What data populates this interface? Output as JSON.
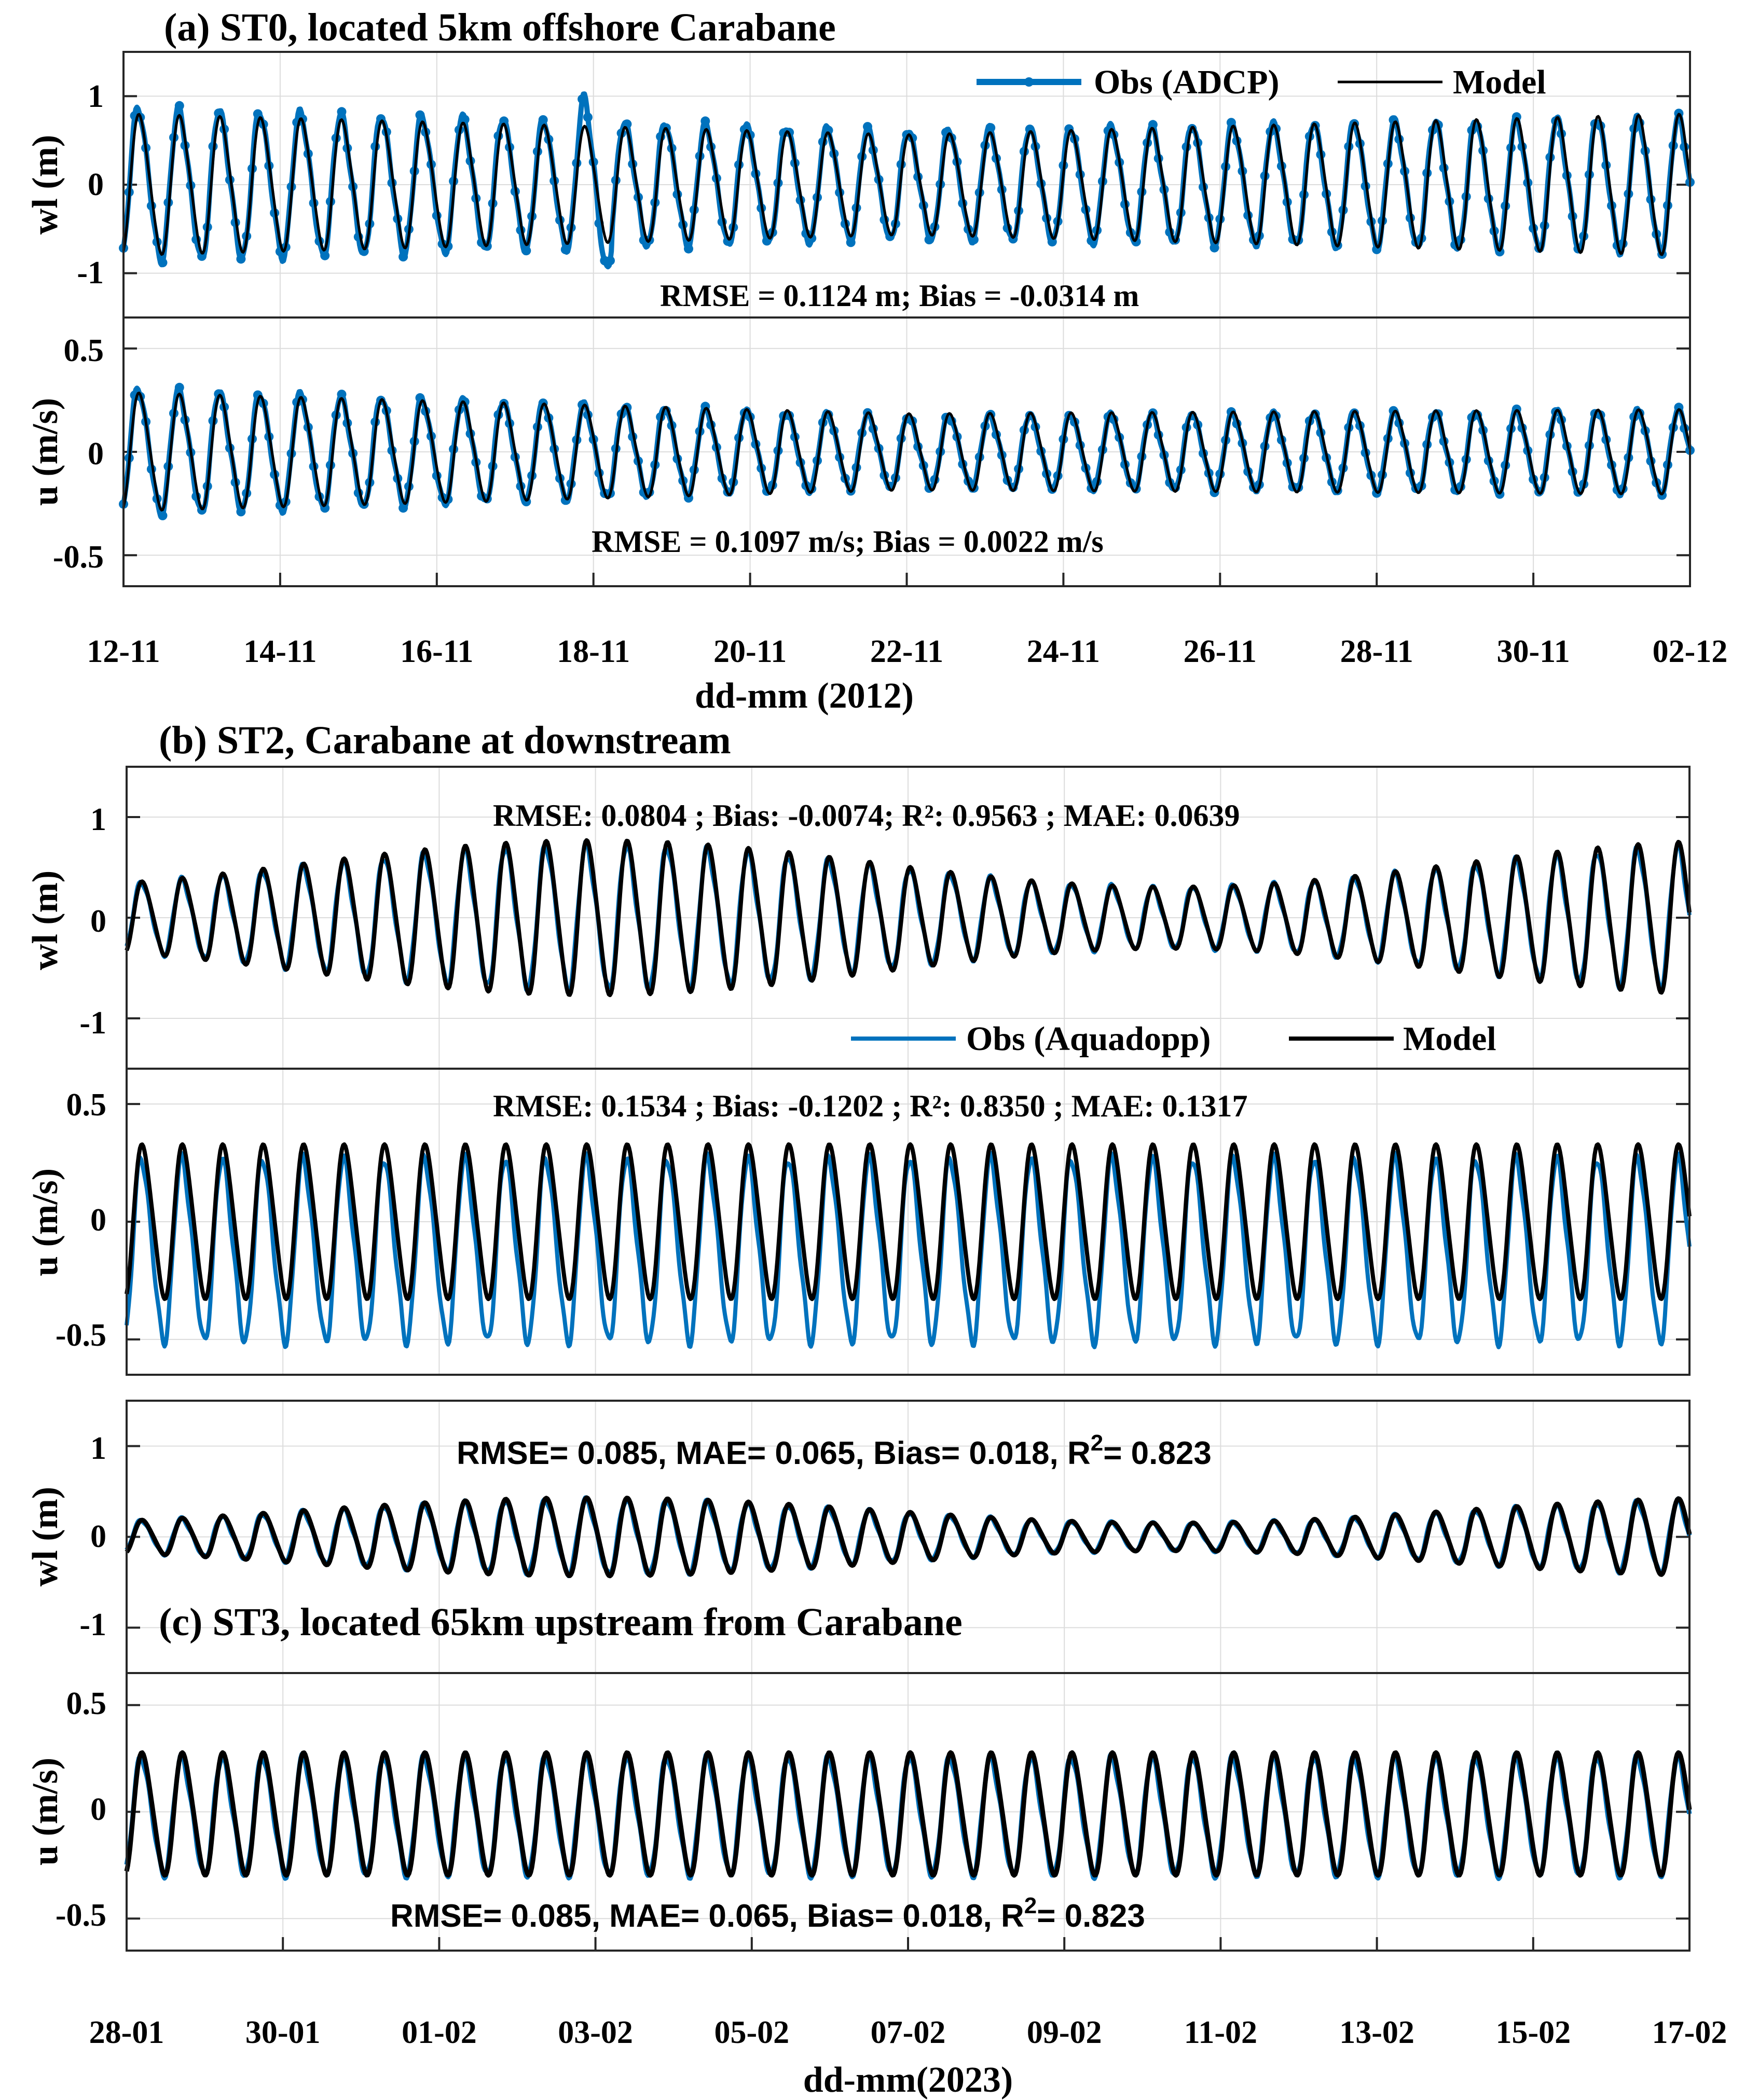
{
  "colors": {
    "obs": "#0072BD",
    "model": "#000000",
    "grid": "#dcdcdc",
    "axis": "#262626"
  },
  "panel_a": {
    "title": "(a)  ST0, located 5km offshore Carabane",
    "xlabel": "dd-mm (2012)",
    "xticks": [
      "12-11",
      "14-11",
      "16-11",
      "18-11",
      "20-11",
      "22-11",
      "24-11",
      "26-11",
      "28-11",
      "30-11",
      "02-12"
    ],
    "legend": {
      "obs": "Obs (ADCP)",
      "model": "Model"
    },
    "wl_stats": "RMSE = 0.1124 m; Bias = -0.0314 m",
    "u_stats": "RMSE = 0.1097 m/s; Bias = 0.0022 m/s"
  },
  "panel_b": {
    "title": "(b)  ST2,  Carabane at downstream",
    "legend": {
      "obs": "Obs (Aquadopp)",
      "model": "Model"
    },
    "wl_stats": "RMSE: 0.0804 ;   Bias: -0.0074; R²: 0.9563    ;  MAE: 0.0639",
    "u_stats": "RMSE: 0.1534 ; Bias: -0.1202 ; R²: 0.8350 ;   MAE: 0.1317"
  },
  "panel_c": {
    "title": "(c)  ST3, located 65km upstream from Carabane",
    "xlabel": "dd-mm(2023)",
    "xticks": [
      "28-01",
      "30-01",
      "01-02",
      "03-02",
      "05-02",
      "07-02",
      "09-02",
      "11-02",
      "13-02",
      "15-02",
      "17-02"
    ],
    "wl_stats": "RMSE= 0.085, MAE= 0.065, Bias= 0.018, R",
    "u_stats": "RMSE= 0.085, MAE= 0.065, Bias= 0.018, R",
    "r2_sup": "2",
    "r2_value": "= 0.823"
  },
  "chart_data": [
    {
      "id": "a-wl",
      "type": "line",
      "ylabel": "wl  (m)",
      "ylim": [
        -1.5,
        1.5
      ],
      "yticks": [
        "1",
        "0",
        "-1"
      ],
      "ytick_values": [
        1,
        0,
        -1
      ],
      "x_start": "2012-11-12",
      "x_end": "2012-12-02",
      "tidal_period_hours": 12.42,
      "series": [
        {
          "name": "Obs (ADCP)",
          "role": "obs",
          "markers": true,
          "amplitude_start": 0.85,
          "amplitude_mid": 0.6,
          "amplitude_end": 0.75,
          "peak_event": {
            "date": "2012-11-18",
            "value": 1.2,
            "trough": -1.1
          }
        },
        {
          "name": "Model",
          "role": "model",
          "amplitude_start": 0.78,
          "amplitude_mid": 0.55,
          "amplitude_end": 0.78
        }
      ]
    },
    {
      "id": "a-u",
      "type": "line",
      "ylabel": "u (m/s)",
      "ylim": [
        -0.65,
        0.65
      ],
      "yticks": [
        "0.5",
        "0",
        "-0.5"
      ],
      "ytick_values": [
        0.5,
        0,
        -0.5
      ],
      "x_start": "2012-11-12",
      "x_end": "2012-12-02",
      "tidal_period_hours": 12.42,
      "series": [
        {
          "name": "Obs (ADCP)",
          "role": "obs",
          "markers": true,
          "amplitude_start": 0.3,
          "amplitude_mid": 0.17,
          "amplitude_end": 0.2
        },
        {
          "name": "Model",
          "role": "model",
          "amplitude_start": 0.28,
          "amplitude_mid": 0.18,
          "amplitude_end": 0.2
        }
      ]
    },
    {
      "id": "b-wl",
      "type": "line",
      "ylabel": "wl (m)",
      "ylim": [
        -1.5,
        1.5
      ],
      "yticks": [
        "1",
        "0",
        "-1"
      ],
      "ytick_values": [
        1,
        0,
        -1
      ],
      "x_start": "2023-01-28",
      "x_end": "2023-02-17",
      "tidal_period_hours": 12.42,
      "series": [
        {
          "name": "Obs (Aquadopp)",
          "role": "obs",
          "amplitude_min": 0.3,
          "amplitude_max": 0.7
        },
        {
          "name": "Model",
          "role": "model",
          "amplitude_min": 0.3,
          "amplitude_max": 0.75
        }
      ]
    },
    {
      "id": "b-u",
      "type": "line",
      "ylabel": "u (m/s)",
      "ylim": [
        -0.65,
        0.65
      ],
      "yticks": [
        "0.5",
        "0",
        "-0.5"
      ],
      "ytick_values": [
        0.5,
        0,
        -0.5
      ],
      "x_start": "2023-01-28",
      "x_end": "2023-02-17",
      "tidal_period_hours": 12.42,
      "series": [
        {
          "name": "Obs (Aquadopp)",
          "role": "obs",
          "mean": -0.12,
          "amplitude": 0.38
        },
        {
          "name": "Model",
          "role": "model",
          "mean": 0.0,
          "amplitude": 0.32
        }
      ]
    },
    {
      "id": "c-wl",
      "type": "line",
      "ylabel": "wl (m)",
      "ylim": [
        -1.5,
        1.5
      ],
      "yticks": [
        "1",
        "0",
        "-1"
      ],
      "ytick_values": [
        1,
        0,
        -1
      ],
      "x_start": "2023-01-28",
      "x_end": "2023-02-17",
      "tidal_period_hours": 12.42,
      "series": [
        {
          "name": "Obs",
          "role": "obs",
          "amplitude_min": 0.15,
          "amplitude_max": 0.4
        },
        {
          "name": "Model",
          "role": "model",
          "amplitude_min": 0.15,
          "amplitude_max": 0.42
        }
      ]
    },
    {
      "id": "c-u",
      "type": "line",
      "ylabel": "u (m/s)",
      "ylim": [
        -0.65,
        0.65
      ],
      "yticks": [
        "0.5",
        "0",
        "-0.5"
      ],
      "ytick_values": [
        0.5,
        0,
        -0.5
      ],
      "x_start": "2023-01-28",
      "x_end": "2023-02-17",
      "tidal_period_hours": 12.42,
      "series": [
        {
          "name": "Obs",
          "role": "obs",
          "mean": -0.02,
          "amplitude": 0.27
        },
        {
          "name": "Model",
          "role": "model",
          "mean": -0.01,
          "amplitude": 0.28
        }
      ]
    }
  ]
}
